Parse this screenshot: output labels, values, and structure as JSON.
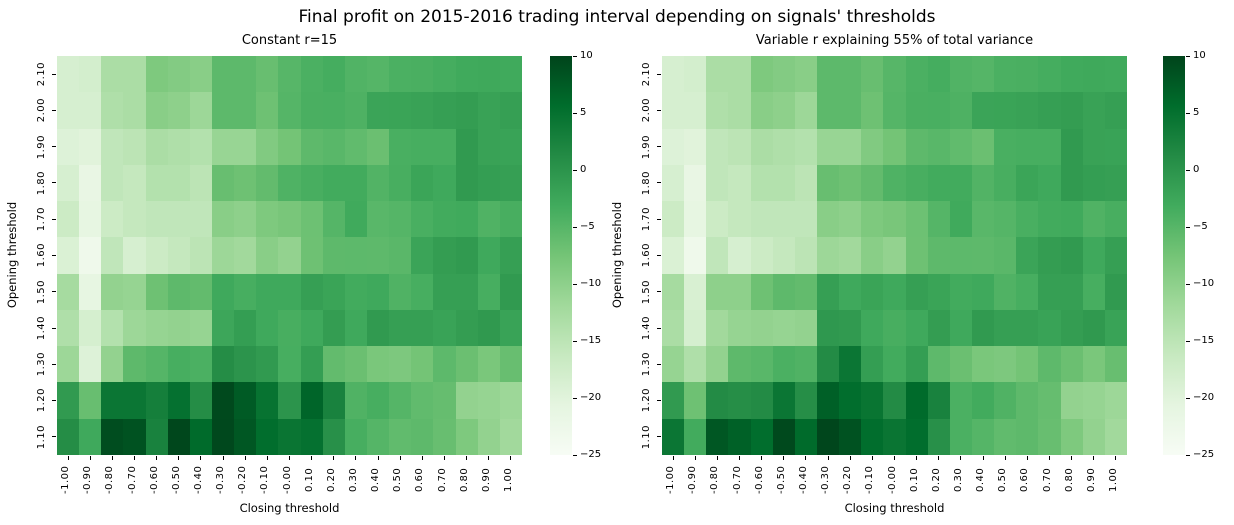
{
  "figure": {
    "title": "Final profit on 2015-2016 trading interval depending on signals' thresholds",
    "background_color": "#ffffff",
    "text_color": "#000000",
    "colormap": "Greens",
    "colormap_stops": [
      "#f7fcf5",
      "#e5f5e0",
      "#c7e9c0",
      "#a1d99b",
      "#74c476",
      "#41ab5d",
      "#238b45",
      "#006d2c",
      "#00441b"
    ]
  },
  "chart_data": [
    {
      "type": "heatmap",
      "title": "Constant r=15",
      "xlabel": "Closing threshold",
      "ylabel": "Opening threshold",
      "x_ticks": [
        "-1.00",
        "-0.90",
        "-0.80",
        "-0.70",
        "-0.60",
        "-0.50",
        "-0.40",
        "-0.30",
        "-0.20",
        "-0.10",
        "-0.00",
        "0.10",
        "0.20",
        "0.30",
        "0.40",
        "0.50",
        "0.60",
        "0.70",
        "0.80",
        "0.90",
        "1.00"
      ],
      "y_ticks": [
        "2.10",
        "2.00",
        "1.90",
        "1.80",
        "1.70",
        "1.60",
        "1.50",
        "1.40",
        "1.30",
        "1.20",
        "1.10"
      ],
      "vmin": -25,
      "vmax": 10,
      "colormap": "Greens",
      "colorbar_ticks": [
        "10",
        "5",
        "0",
        "−5",
        "−10",
        "−15",
        "−20",
        "−25"
      ],
      "colorbar_tick_values": [
        10,
        5,
        0,
        -5,
        -10,
        -15,
        -20,
        -25
      ],
      "values": [
        [
          -18.5,
          -18.0,
          -13.0,
          -13.0,
          -8.5,
          -9.0,
          -9.5,
          -5.5,
          -5.5,
          -6.5,
          -5.0,
          -4.0,
          -3.5,
          -4.5,
          -4.8,
          -4.0,
          -3.9,
          -3.5,
          -3.0,
          -2.8,
          -3.0
        ],
        [
          -18.5,
          -18.5,
          -13.5,
          -13.0,
          -9.5,
          -10.0,
          -11.5,
          -5.5,
          -5.5,
          -7.0,
          -4.8,
          -3.9,
          -3.8,
          -4.2,
          -2.2,
          -2.1,
          -1.9,
          -1.5,
          -1.2,
          -1.9,
          -1.5
        ],
        [
          -19.5,
          -20.0,
          -15.5,
          -15.0,
          -13.0,
          -13.5,
          -14.0,
          -11.0,
          -11.0,
          -8.8,
          -7.5,
          -5.6,
          -5.2,
          -5.9,
          -6.7,
          -3.8,
          -3.6,
          -3.6,
          -0.8,
          -1.9,
          -2.0
        ],
        [
          -18.5,
          -21.5,
          -15.5,
          -16.0,
          -14.0,
          -14.0,
          -15.0,
          -6.5,
          -7.0,
          -6.0,
          -4.3,
          -3.7,
          -3.2,
          -3.2,
          -4.6,
          -3.7,
          -2.3,
          -2.9,
          -0.8,
          -1.3,
          -1.5
        ],
        [
          -17.0,
          -21.0,
          -17.0,
          -16.0,
          -15.5,
          -15.5,
          -15.5,
          -9.5,
          -10.0,
          -8.5,
          -8.0,
          -6.9,
          -4.8,
          -3.0,
          -5.2,
          -4.8,
          -3.8,
          -3.2,
          -3.0,
          -4.4,
          -3.7
        ],
        [
          -19.0,
          -23.0,
          -15.5,
          -18.5,
          -17.0,
          -16.0,
          -15.0,
          -11.5,
          -12.0,
          -9.5,
          -10.5,
          -7.0,
          -5.6,
          -5.5,
          -5.6,
          -5.3,
          -2.2,
          -1.2,
          -0.8,
          -2.9,
          -1.5
        ],
        [
          -12.5,
          -21.0,
          -10.5,
          -10.8,
          -7.0,
          -5.6,
          -6.0,
          -2.9,
          -3.6,
          -2.9,
          -2.9,
          -1.5,
          -2.1,
          -3.2,
          -2.9,
          -4.4,
          -3.6,
          -1.5,
          -1.5,
          -3.6,
          -0.8
        ],
        [
          -13.5,
          -18.3,
          -14.0,
          -11.5,
          -10.8,
          -10.5,
          -10.8,
          -2.5,
          -1.3,
          -2.9,
          -3.7,
          -2.9,
          -1.2,
          -2.9,
          -0.8,
          -1.5,
          -1.5,
          -2.0,
          -1.2,
          -0.6,
          -2.0
        ],
        [
          -11.5,
          -19.5,
          -10.5,
          -5.6,
          -4.8,
          -3.6,
          -4.0,
          1.0,
          0.0,
          -0.8,
          -3.6,
          -1.3,
          -6.0,
          -6.7,
          -8.1,
          -8.4,
          -7.5,
          -5.5,
          -6.7,
          -8.1,
          -6.5
        ],
        [
          -0.8,
          -6.5,
          4.3,
          4.3,
          3.0,
          5.0,
          1.0,
          9.5,
          7.5,
          4.8,
          0.0,
          6.5,
          2.5,
          -4.4,
          -3.6,
          -4.8,
          -5.9,
          -6.3,
          -10.5,
          -10.8,
          -11.5
        ],
        [
          1.0,
          -2.9,
          9.0,
          8.5,
          2.5,
          9.7,
          5.8,
          9.6,
          8.0,
          5.5,
          4.4,
          5.0,
          0.5,
          -3.6,
          -4.8,
          -5.9,
          -5.6,
          -6.5,
          -8.5,
          -10.5,
          -12.0
        ]
      ]
    },
    {
      "type": "heatmap",
      "title": "Variable r explaining 55% of total variance",
      "xlabel": "Closing threshold",
      "ylabel": "Opening threshold",
      "x_ticks": [
        "-1.00",
        "-0.90",
        "-0.80",
        "-0.70",
        "-0.60",
        "-0.50",
        "-0.40",
        "-0.30",
        "-0.20",
        "-0.10",
        "-0.00",
        "0.10",
        "0.20",
        "0.30",
        "0.40",
        "0.50",
        "0.60",
        "0.70",
        "0.80",
        "0.90",
        "1.00"
      ],
      "y_ticks": [
        "2.10",
        "2.00",
        "1.90",
        "1.80",
        "1.70",
        "1.60",
        "1.50",
        "1.40",
        "1.30",
        "1.20",
        "1.10"
      ],
      "vmin": -25,
      "vmax": 10,
      "colormap": "Greens",
      "colorbar_ticks": [
        "10",
        "5",
        "0",
        "−5",
        "−10",
        "−15",
        "−20",
        "−25"
      ],
      "colorbar_tick_values": [
        10,
        5,
        0,
        -5,
        -10,
        -15,
        -20,
        -25
      ],
      "values": [
        [
          -18.5,
          -18.0,
          -13.0,
          -13.0,
          -8.5,
          -9.0,
          -9.5,
          -5.5,
          -5.5,
          -6.5,
          -5.0,
          -4.0,
          -3.5,
          -4.5,
          -4.8,
          -4.0,
          -3.9,
          -3.5,
          -3.0,
          -2.8,
          -3.0
        ],
        [
          -18.5,
          -18.5,
          -13.5,
          -13.0,
          -9.5,
          -10.0,
          -11.5,
          -5.5,
          -5.5,
          -7.0,
          -4.8,
          -3.9,
          -3.8,
          -4.2,
          -2.2,
          -2.1,
          -1.9,
          -1.5,
          -1.2,
          -1.9,
          -1.5
        ],
        [
          -19.5,
          -20.0,
          -15.5,
          -15.0,
          -13.0,
          -13.5,
          -14.0,
          -11.0,
          -11.0,
          -8.8,
          -7.5,
          -5.6,
          -5.2,
          -5.9,
          -6.7,
          -3.8,
          -3.6,
          -3.6,
          -0.8,
          -1.9,
          -2.0
        ],
        [
          -18.5,
          -21.5,
          -15.5,
          -16.0,
          -14.0,
          -14.0,
          -15.0,
          -6.5,
          -7.0,
          -6.0,
          -4.3,
          -3.7,
          -3.2,
          -3.2,
          -4.6,
          -3.7,
          -2.3,
          -2.9,
          -0.8,
          -1.3,
          -1.5
        ],
        [
          -17.0,
          -21.0,
          -17.0,
          -16.0,
          -15.5,
          -15.5,
          -15.5,
          -9.5,
          -10.0,
          -8.5,
          -8.0,
          -6.9,
          -4.8,
          -3.0,
          -5.2,
          -4.8,
          -3.8,
          -3.2,
          -3.0,
          -4.4,
          -3.7
        ],
        [
          -19.0,
          -23.0,
          -15.5,
          -18.5,
          -17.0,
          -16.0,
          -15.0,
          -11.5,
          -12.0,
          -9.5,
          -10.5,
          -7.0,
          -5.6,
          -5.5,
          -5.6,
          -5.3,
          -2.2,
          -1.2,
          -0.8,
          -2.9,
          -1.5
        ],
        [
          -12.5,
          -18.7,
          -10.0,
          -10.0,
          -7.0,
          -5.6,
          -6.0,
          -1.5,
          -2.9,
          -2.1,
          -2.9,
          -1.5,
          -2.1,
          -3.2,
          -2.9,
          -4.4,
          -3.6,
          -1.5,
          -1.5,
          -3.6,
          -0.8
        ],
        [
          -13.0,
          -18.3,
          -12.0,
          -10.8,
          -10.5,
          -10.8,
          -10.5,
          -0.5,
          -0.8,
          -2.9,
          -3.7,
          -2.9,
          -1.2,
          -2.9,
          -0.8,
          -1.5,
          -1.5,
          -2.0,
          -1.2,
          -0.6,
          -2.0
        ],
        [
          -10.8,
          -13.5,
          -10.5,
          -5.6,
          -5.2,
          -4.0,
          -4.4,
          1.3,
          4.3,
          -1.3,
          -3.2,
          -1.3,
          -5.6,
          -6.7,
          -8.1,
          -8.4,
          -7.5,
          -5.6,
          -6.7,
          -8.1,
          -6.5
        ],
        [
          -0.8,
          -7.0,
          1.3,
          0.8,
          1.3,
          4.3,
          0.8,
          7.0,
          5.5,
          4.5,
          1.3,
          5.8,
          2.5,
          -4.0,
          -3.2,
          -4.4,
          -5.6,
          -6.3,
          -10.5,
          -10.8,
          -11.5
        ],
        [
          4.3,
          -3.2,
          8.0,
          6.9,
          5.5,
          9.5,
          5.8,
          9.8,
          8.5,
          5.5,
          4.4,
          5.5,
          0.5,
          -4.0,
          -4.8,
          -5.9,
          -5.6,
          -6.5,
          -8.5,
          -10.5,
          -12.0
        ]
      ]
    }
  ]
}
